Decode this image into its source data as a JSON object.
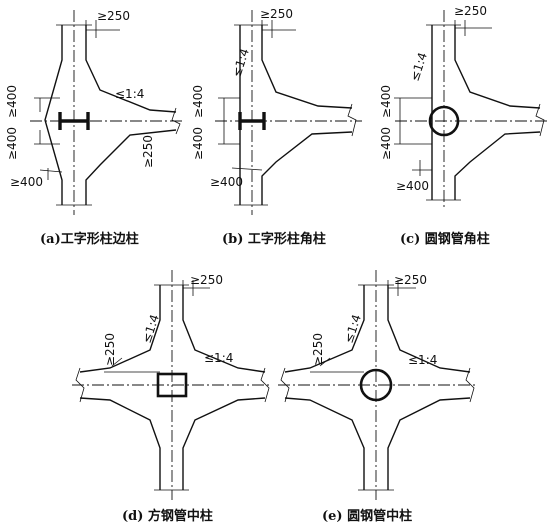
{
  "diagrams": {
    "a": {
      "caption": "(a)工字形柱边柱",
      "dims": [
        "≥250",
        "≤1:4",
        "≥400",
        "≥400",
        "≥250",
        "≥400"
      ]
    },
    "b": {
      "caption": "(b) 工字形柱角柱",
      "dims": [
        "≥250",
        "≤1:4",
        "≥400",
        "≥400",
        "≥400"
      ]
    },
    "c": {
      "caption": "(c) 圆钢管角柱",
      "dims": [
        "≥250",
        "≤1:4",
        "≥400",
        "≥400",
        "≥400"
      ]
    },
    "d": {
      "caption": "(d) 方钢管中柱",
      "dims": [
        "≥250",
        "≥250",
        "≤1:4",
        "≤1:4"
      ]
    },
    "e": {
      "caption": "(e) 圆钢管中柱",
      "dims": [
        "≥250",
        "≥250",
        "≤1:4",
        "≤1:4"
      ]
    }
  }
}
